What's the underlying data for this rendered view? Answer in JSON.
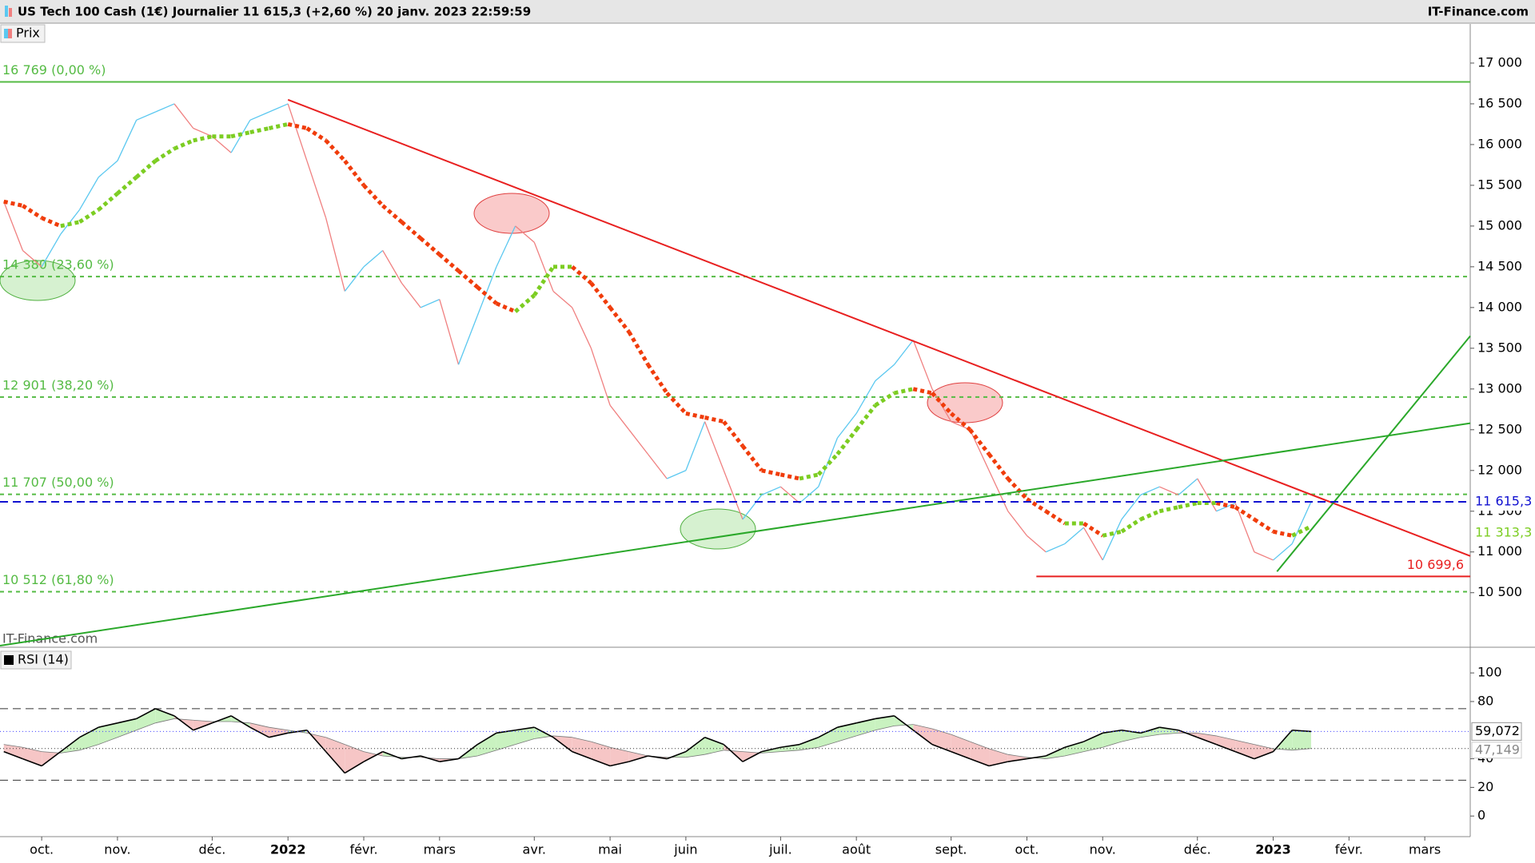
{
  "chart_data": [
    {
      "type": "line",
      "title": "US Tech 100 Cash (1€) Journalier 11 615,3 (+2,60 %) 20 janv. 2023 22:59:59",
      "source": "IT-Finance.com",
      "categories": [
        null,
        null,
        "oct.",
        null,
        null,
        null,
        "nov.",
        null,
        null,
        null,
        null,
        "déc.",
        null,
        null,
        null,
        "2022",
        null,
        null,
        null,
        "févr.",
        null,
        null,
        null,
        "mars",
        null,
        null,
        null,
        null,
        "avr.",
        null,
        null,
        null,
        "mai",
        null,
        null,
        null,
        "juin",
        null,
        null,
        null,
        null,
        "juil.",
        null,
        null,
        null,
        "août",
        null,
        null,
        null,
        null,
        "sept.",
        null,
        null,
        null,
        "oct.",
        null,
        null,
        null,
        "nov.",
        null,
        null,
        null,
        null,
        "déc.",
        null,
        null,
        null,
        "2023",
        null,
        null,
        null,
        "févr.",
        null,
        null,
        null,
        "mars",
        null,
        null
      ],
      "series": [
        {
          "name": "Prix",
          "color": "#5bc8f0",
          "down_color": "#f08080",
          "last_value_label": "11 615,3",
          "last_line_color": "#1010d0",
          "values": [
            15300,
            14700,
            14500,
            14900,
            15200,
            15600,
            15800,
            16300,
            16400,
            16500,
            16200,
            16100,
            15900,
            16300,
            16400,
            16500,
            15800,
            15100,
            14200,
            14500,
            14700,
            14300,
            14000,
            14100,
            13300,
            13900,
            14500,
            15000,
            14800,
            14200,
            14000,
            13500,
            12800,
            12500,
            12200,
            11900,
            12000,
            12600,
            12000,
            11400,
            11700,
            11800,
            11600,
            11800,
            12400,
            12700,
            13100,
            13300,
            13600,
            13000,
            12600,
            12500,
            12000,
            11500,
            11200,
            11000,
            11100,
            11300,
            10900,
            11400,
            11700,
            11800,
            11700,
            11900,
            11500,
            11600,
            11000,
            10900,
            11100,
            11615.3,
            null,
            null,
            null,
            null,
            null,
            null,
            null,
            null
          ]
        }
      ],
      "moving_average": {
        "color": "#7ccd22",
        "down_color": "#f03c0a",
        "last_value_label": "11 313,3",
        "values": [
          15300,
          15250,
          15100,
          15000,
          15050,
          15200,
          15400,
          15600,
          15800,
          15950,
          16050,
          16100,
          16100,
          16150,
          16200,
          16250,
          16200,
          16050,
          15800,
          15500,
          15250,
          15050,
          14850,
          14650,
          14450,
          14250,
          14050,
          13950,
          14150,
          14500,
          14500,
          14300,
          14000,
          13700,
          13300,
          12950,
          12700,
          12650,
          12600,
          12300,
          12000,
          11950,
          11900,
          11950,
          12200,
          12500,
          12800,
          12950,
          13000,
          12950,
          12700,
          12500,
          12200,
          11900,
          11650,
          11500,
          11350,
          11350,
          11200,
          11250,
          11400,
          11500,
          11550,
          11600,
          11600,
          11550,
          11400,
          11250,
          11200,
          11313.3,
          null,
          null,
          null,
          null,
          null,
          null,
          null,
          null
        ]
      },
      "levels": [
        {
          "value": 16769,
          "label": "16 769 (0,00 %)",
          "solid": true
        },
        {
          "value": 14380,
          "label": "14 380 (23,60 %)"
        },
        {
          "value": 12901,
          "label": "12 901 (38,20 %)"
        },
        {
          "value": 11707,
          "label": "11 707 (50,00 %)"
        },
        {
          "value": 10512,
          "label": "10 512 (61,80 %)"
        }
      ],
      "level_color": "#55bb44",
      "trendlines": [
        {
          "color": "#e82020",
          "points": [
            [
              15,
              16550
            ],
            [
              77.4,
              10950
            ]
          ]
        },
        {
          "color": "#2aa82a",
          "points": [
            [
              -0.2,
              9850
            ],
            [
              77.4,
              12580
            ]
          ]
        },
        {
          "color": "#2aa82a",
          "points": [
            [
              67.2,
              10760
            ],
            [
              77.4,
              13650
            ]
          ]
        },
        {
          "color": "#e82020",
          "points": [
            [
              54.5,
              10699.6
            ],
            [
              77.4,
              10699.6
            ]
          ],
          "label": "10 699,6"
        }
      ],
      "ylim": [
        9850,
        17480
      ],
      "yticks": [
        {
          "value": 10500,
          "label": "10 500"
        },
        {
          "value": 11000,
          "label": "11 000"
        },
        {
          "value": 11500,
          "label": "11 500"
        },
        {
          "value": 12000,
          "label": "12 000"
        },
        {
          "value": 12500,
          "label": "12 500"
        },
        {
          "value": 13000,
          "label": "13 000"
        },
        {
          "value": 13500,
          "label": "13 500"
        },
        {
          "value": 14000,
          "label": "14 000"
        },
        {
          "value": 14500,
          "label": "14 500"
        },
        {
          "value": 15000,
          "label": "15 000"
        },
        {
          "value": 15500,
          "label": "15 500"
        },
        {
          "value": 16000,
          "label": "16 000"
        },
        {
          "value": 16500,
          "label": "16 500"
        },
        {
          "value": 17000,
          "label": "17 000"
        }
      ]
    },
    {
      "type": "line",
      "series": [
        {
          "name": "RSI (14)",
          "color": "#000000",
          "last_value_label": "59,072",
          "last_line_color": "#4040ff",
          "values": [
            45,
            40,
            35,
            45,
            55,
            62,
            65,
            68,
            75,
            70,
            60,
            65,
            70,
            62,
            55,
            58,
            60,
            45,
            30,
            38,
            45,
            40,
            42,
            38,
            40,
            50,
            58,
            60,
            62,
            55,
            45,
            40,
            35,
            38,
            42,
            40,
            45,
            55,
            50,
            38,
            45,
            48,
            50,
            55,
            62,
            65,
            68,
            70,
            60,
            50,
            45,
            40,
            35,
            38,
            40,
            42,
            48,
            52,
            58,
            60,
            58,
            62,
            60,
            55,
            50,
            45,
            40,
            45,
            60,
            59.072,
            null,
            null,
            null,
            null,
            null,
            null,
            null,
            null
          ]
        }
      ],
      "signal": {
        "color": "#777777",
        "up_fill": "#c9f2c0",
        "down_fill": "#f6c6c6",
        "last_value_label": "47,149",
        "values": [
          50,
          48,
          45,
          44,
          46,
          50,
          55,
          60,
          65,
          68,
          67,
          66,
          66,
          65,
          62,
          60,
          58,
          55,
          50,
          45,
          42,
          41,
          41,
          40,
          40,
          42,
          46,
          50,
          54,
          56,
          55,
          52,
          48,
          45,
          42,
          41,
          41,
          43,
          46,
          45,
          44,
          45,
          46,
          48,
          52,
          56,
          60,
          63,
          64,
          61,
          57,
          52,
          47,
          43,
          41,
          40,
          42,
          45,
          48,
          52,
          55,
          57,
          58,
          58,
          56,
          53,
          50,
          47,
          46,
          47.149,
          null,
          null,
          null,
          null,
          null,
          null,
          null,
          null
        ]
      },
      "levels": [
        75,
        25
      ],
      "ylim": [
        -14.4,
        115.7
      ],
      "yticks": [
        0,
        20,
        40,
        80,
        100
      ]
    }
  ]
}
